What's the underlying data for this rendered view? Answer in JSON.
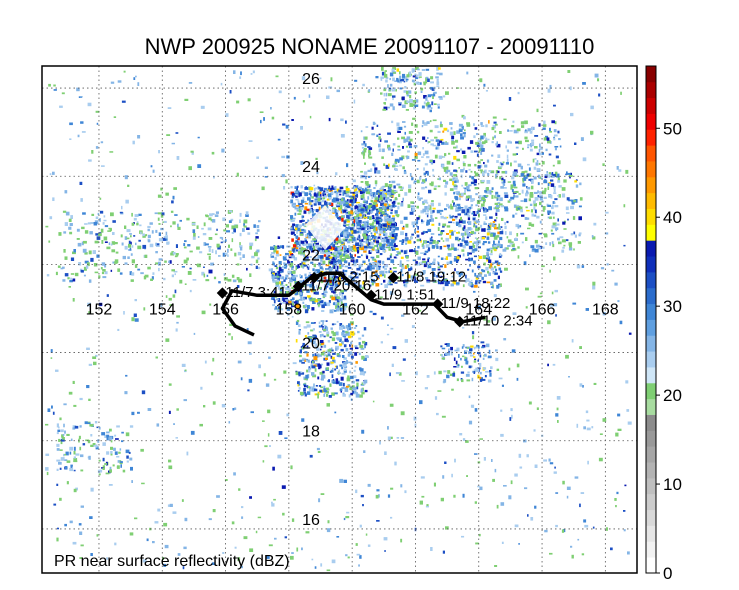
{
  "title": "NWP 200925 NONAME 20091107 - 20091110",
  "footer_label": "PR near surface reflectivity (dBZ)",
  "map": {
    "lon_range": [
      150.2,
      169.0
    ],
    "lat_range": [
      15.0,
      26.5
    ],
    "lon_ticks": [
      152,
      154,
      156,
      158,
      160,
      162,
      164,
      166,
      168
    ],
    "lat_ticks": [
      16,
      18,
      20,
      22,
      24,
      26
    ],
    "lon_label_lat": 21.0
  },
  "track": {
    "line_color": "#000000",
    "path": [
      [
        156.9,
        20.4
      ],
      [
        156.3,
        20.6
      ],
      [
        155.9,
        21.0
      ],
      [
        156.2,
        21.4
      ],
      [
        157.0,
        21.3
      ],
      [
        158.0,
        21.3
      ],
      [
        158.7,
        21.7
      ],
      [
        159.2,
        21.8
      ],
      [
        159.6,
        21.8
      ],
      [
        160.1,
        21.5
      ],
      [
        160.6,
        21.2
      ],
      [
        161.0,
        21.1
      ],
      [
        162.6,
        21.1
      ],
      [
        163.0,
        20.8
      ],
      [
        163.5,
        20.7
      ],
      [
        164.2,
        20.8
      ]
    ],
    "points": [
      {
        "lon": 155.9,
        "lat": 21.35,
        "label": "11/7 3:41"
      },
      {
        "lon": 158.3,
        "lat": 21.5,
        "label": "11/7 20:16"
      },
      {
        "lon": 158.8,
        "lat": 21.7,
        "label": "11/8 2:15"
      },
      {
        "lon": 160.6,
        "lat": 21.3,
        "label": "11/9 1:51"
      },
      {
        "lon": 161.3,
        "lat": 21.7,
        "label": "11/8 19:12"
      },
      {
        "lon": 162.7,
        "lat": 21.1,
        "label": "11/9 18:22"
      },
      {
        "lon": 163.4,
        "lat": 20.7,
        "label": "11/10 2:34"
      }
    ]
  },
  "colorbar": {
    "min": 0,
    "max": 57,
    "tick_values": [
      0,
      10,
      20,
      30,
      40,
      50
    ],
    "colors": [
      "#ffffff",
      "#f2f2f2",
      "#e6e6e6",
      "#d9d9d9",
      "#cccccc",
      "#bfbfbf",
      "#b3b3b3",
      "#a6a6a6",
      "#999999",
      "#8c8c8c",
      "#a8dca0",
      "#7fcf73",
      "#cfe6f7",
      "#a9cdef",
      "#84b5e6",
      "#5f9fe0",
      "#3f86d6",
      "#2b6ccc",
      "#1c4fc4",
      "#0f2fba",
      "#0a1ab0",
      "#ffff00",
      "#ffdd00",
      "#ffbb00",
      "#ff9900",
      "#ff7700",
      "#ff5500",
      "#ff2200",
      "#ee0000",
      "#cc0000",
      "#aa0000",
      "#880000"
    ]
  },
  "reflectivity_palette": [
    "#7fcf73",
    "#a9cdef",
    "#84b5e6",
    "#3f86d6",
    "#1c4fc4",
    "#0a1ab0",
    "#ffdd00",
    "#ff9900",
    "#ee2200"
  ]
}
